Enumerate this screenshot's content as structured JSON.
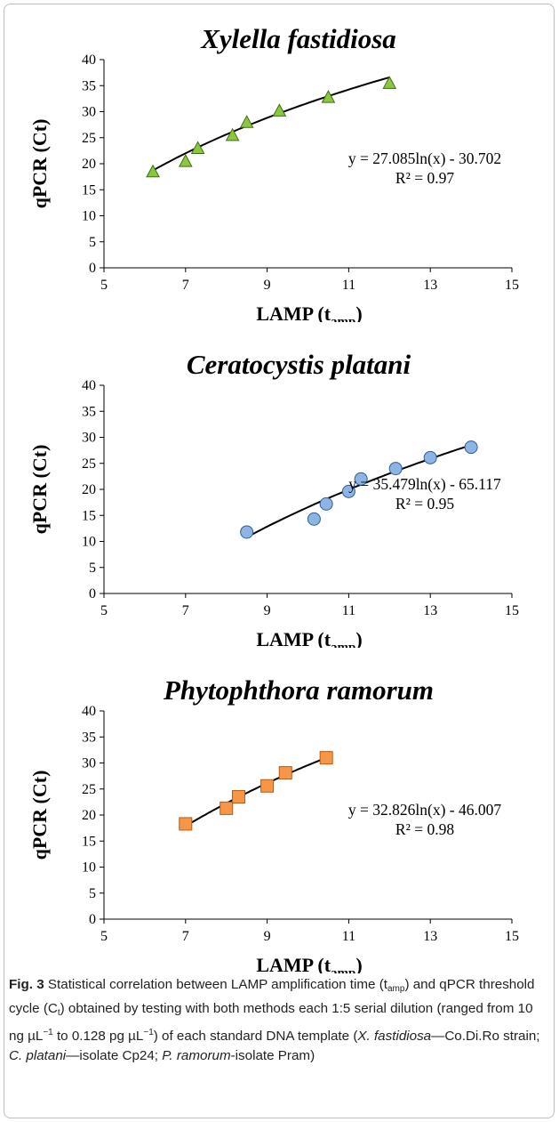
{
  "chart_data": [
    {
      "type": "scatter",
      "title": "Xylella fastidiosa",
      "xlabel": "LAMP (t",
      "xlabel_sub": "amp",
      "xlabel_close": ")",
      "ylabel": "qPCR (Ct)",
      "xlim": [
        5,
        15
      ],
      "ylim": [
        0,
        40
      ],
      "xticks": [
        "5",
        "7",
        "9",
        "11",
        "13",
        "15"
      ],
      "yticks": [
        "0",
        "5",
        "10",
        "15",
        "20",
        "25",
        "30",
        "35",
        "40"
      ],
      "marker": "triangle",
      "marker_color": "#8dc63f",
      "marker_edge": "#3b6e12",
      "x": [
        6.2,
        7.0,
        7.3,
        8.15,
        8.5,
        9.3,
        10.5,
        12.0
      ],
      "y": [
        18.5,
        20.5,
        23.0,
        25.5,
        28.0,
        30.2,
        32.8,
        35.5
      ],
      "trendline": {
        "a": 27.085,
        "b": -30.702,
        "x_range": [
          6.2,
          12.0
        ]
      },
      "equation": "y = 27.085ln(x) - 30.702",
      "r2": "R² = 0.97"
    },
    {
      "type": "scatter",
      "title": "Ceratocystis platani",
      "xlabel": "LAMP (t",
      "xlabel_sub": "amp",
      "xlabel_close": ")",
      "ylabel": "qPCR (Ct)",
      "xlim": [
        5,
        15
      ],
      "ylim": [
        0,
        40
      ],
      "xticks": [
        "5",
        "7",
        "9",
        "11",
        "13",
        "15"
      ],
      "yticks": [
        "0",
        "5",
        "10",
        "15",
        "20",
        "25",
        "30",
        "35",
        "40"
      ],
      "marker": "circle",
      "marker_color": "#8eb4e3",
      "marker_edge": "#2e5f9a",
      "x": [
        8.5,
        10.15,
        10.45,
        11.0,
        11.3,
        12.15,
        13.0,
        14.0
      ],
      "y": [
        11.8,
        14.3,
        17.2,
        19.6,
        22.0,
        24.0,
        26.1,
        28.1
      ],
      "trendline": {
        "a": 35.479,
        "b": -65.117,
        "x_range": [
          8.5,
          14.0
        ]
      },
      "equation": "y = 35.479ln(x) - 65.117",
      "r2": "R² = 0.95"
    },
    {
      "type": "scatter",
      "title": "Phytophthora ramorum",
      "xlabel": "LAMP (t",
      "xlabel_sub": "amp",
      "xlabel_close": ")",
      "ylabel": "qPCR (Ct)",
      "xlim": [
        5,
        15
      ],
      "ylim": [
        0,
        40
      ],
      "xticks": [
        "5",
        "7",
        "9",
        "11",
        "13",
        "15"
      ],
      "yticks": [
        "0",
        "5",
        "10",
        "15",
        "20",
        "25",
        "30",
        "35",
        "40"
      ],
      "marker": "square",
      "marker_color": "#f79646",
      "marker_edge": "#b85a16",
      "x": [
        7.0,
        8.0,
        8.3,
        9.0,
        9.45,
        10.45
      ],
      "y": [
        18.3,
        21.3,
        23.5,
        25.6,
        28.1,
        31.0
      ],
      "trendline": {
        "a": 32.826,
        "b": -46.007,
        "x_range": [
          7.0,
          10.45
        ]
      },
      "equation": "y = 32.826ln(x) - 46.007",
      "r2": "R² = 0.98"
    }
  ],
  "caption": {
    "fig_label": "Fig. 3",
    "t1": "  Statistical correlation between LAMP amplification time (t",
    "t1_sub": "amp",
    "t2": ") and qPCR threshold cycle (C",
    "t2_sub": "t",
    "t3": ") obtained by testing with both methods each 1:5 serial dilution (ranged from 10 ng µL",
    "t3_sup": "−1",
    "t4": " to 0.128 pg µL",
    "t4_sup": "−1",
    "t5": ") of each standard DNA template (",
    "sp1": "X. fastidiosa",
    "t6": "—Co.Di.Ro strain; ",
    "sp2": "C. platani",
    "t7": "—isolate Cp24; ",
    "sp3": "P. ramorum",
    "t8": "-isolate Pram)"
  }
}
